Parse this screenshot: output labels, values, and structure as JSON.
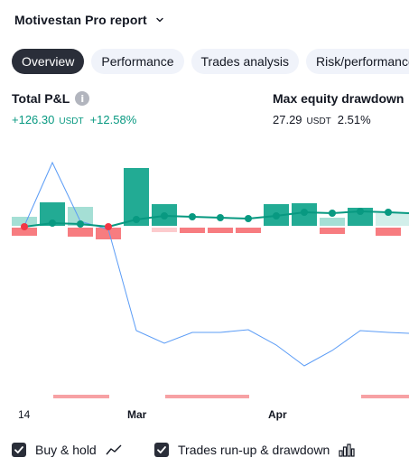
{
  "header": {
    "title": "Motivestan Pro report"
  },
  "tabs": [
    {
      "label": "Overview",
      "active": true
    },
    {
      "label": "Performance"
    },
    {
      "label": "Trades analysis"
    },
    {
      "label": "Risk/performance"
    }
  ],
  "metrics": {
    "total_pnl": {
      "label": "Total P&L",
      "value": "+126.30",
      "unit": "USDT",
      "percent": "+12.58%"
    },
    "max_drawdown": {
      "label": "Max equity drawdown",
      "value": "27.29",
      "unit": "USDT",
      "percent": "2.51%"
    }
  },
  "chart": {
    "x_ticks": [
      "14",
      "Mar",
      "Apr"
    ],
    "colors": {
      "runup": "#22ab94",
      "runup_light": "#a5dfd5",
      "drawdown": "#f77c80",
      "drawdown_light": "#fccbcd",
      "equity": "#089981",
      "equity_negative": "#f23645",
      "buy_hold": "#5b9cf6"
    }
  },
  "legend": [
    {
      "label": "Buy & hold",
      "checked": true,
      "icon": "line-chart-icon"
    },
    {
      "label": "Trades run-up & drawdown",
      "checked": true,
      "icon": "bar-chart-icon"
    }
  ]
}
